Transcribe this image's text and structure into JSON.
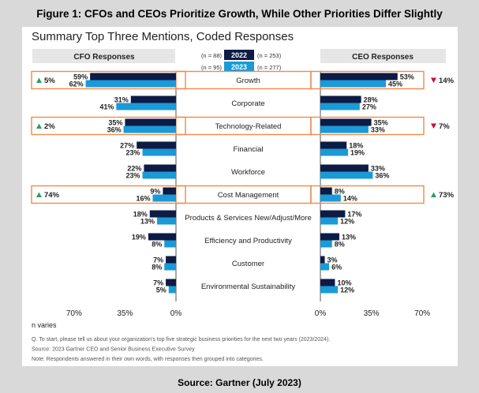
{
  "figure_title": "Figure 1: CFOs and CEOs Prioritize Growth, While Other Priorities Differ Slightly",
  "source_caption": "Source: Gartner (July 2023)",
  "chart_data": {
    "type": "bar",
    "title": "Summary Top Three Mentions, Coded Responses",
    "left_header": "CFO Responses",
    "right_header": "CEO Responses",
    "legend": [
      {
        "year": "2022",
        "color": "#0d1b45",
        "cfo_n": "(n = 88)",
        "ceo_n": "(n = 253)"
      },
      {
        "year": "2023",
        "color": "#1a9ad6",
        "cfo_n": "(n = 95)",
        "ceo_n": "(n = 277)"
      }
    ],
    "categories": [
      "Growth",
      "Corporate",
      "Technology-Related",
      "Financial",
      "Workforce",
      "Cost Management",
      "Products & Services New/Adjust/More",
      "Efficiency and Productivity",
      "Customer",
      "Environmental Sustainability"
    ],
    "cfo": {
      "2022": [
        59,
        31,
        35,
        27,
        22,
        9,
        18,
        19,
        7,
        7
      ],
      "2023": [
        62,
        41,
        36,
        23,
        23,
        16,
        13,
        8,
        8,
        5
      ]
    },
    "ceo": {
      "2022": [
        53,
        28,
        35,
        18,
        33,
        8,
        17,
        13,
        3,
        10
      ],
      "2023": [
        45,
        27,
        33,
        19,
        36,
        14,
        12,
        8,
        6,
        12
      ]
    },
    "highlighted": [
      "Growth",
      "Technology-Related",
      "Cost Management"
    ],
    "changes": [
      {
        "category": "Growth",
        "side": "cfo",
        "direction": "up",
        "label": "5%"
      },
      {
        "category": "Growth",
        "side": "ceo",
        "direction": "down",
        "label": "14%"
      },
      {
        "category": "Technology-Related",
        "side": "cfo",
        "direction": "up",
        "label": "2%"
      },
      {
        "category": "Technology-Related",
        "side": "ceo",
        "direction": "down",
        "label": "7%"
      },
      {
        "category": "Cost Management",
        "side": "cfo",
        "direction": "up",
        "label": "74%"
      },
      {
        "category": "Cost Management",
        "side": "ceo",
        "direction": "up",
        "label": "73%"
      }
    ],
    "xlim": [
      0,
      70
    ],
    "left_ticks": [
      "70%",
      "35%",
      "0%"
    ],
    "right_ticks": [
      "0%",
      "35%",
      "70%"
    ],
    "up_color": "#2e9e5b",
    "down_color": "#c8102e",
    "highlight_color": "#f08a4b",
    "header_bg": "#e6e6e6"
  },
  "notes": {
    "n_varies": "n varies",
    "lines": [
      "Q. To start, please tell us about your organization's top five strategic business priorities for the next two years (2023/2024).",
      "Source: 2023 Gartner CEO and Senior Business Executive Survey",
      "Note: Respondents answered in their own words, with responses then grouped into categories."
    ]
  }
}
